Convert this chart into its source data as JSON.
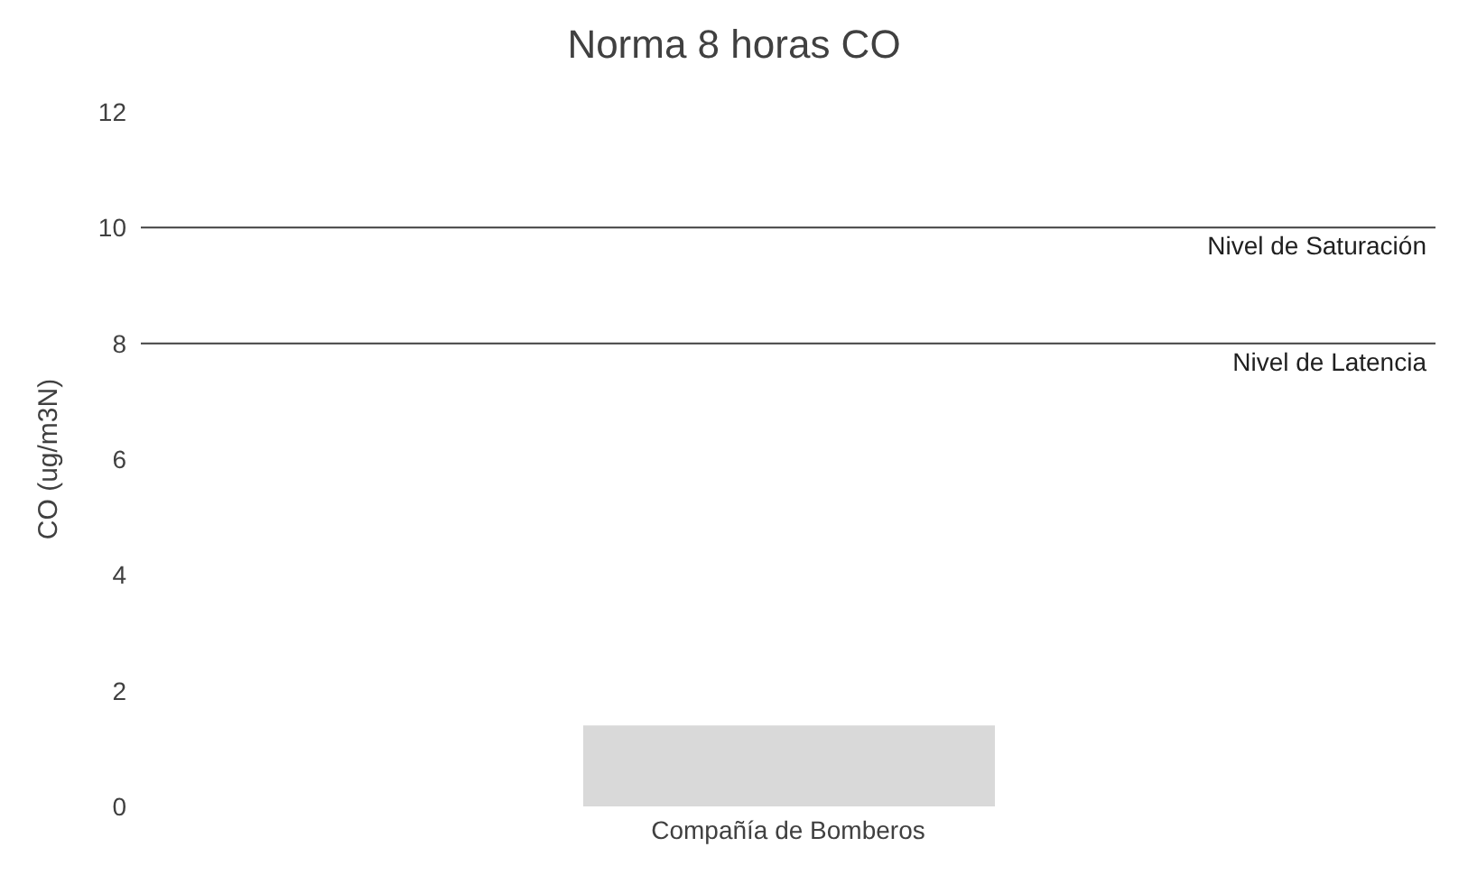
{
  "chart_data": {
    "type": "bar",
    "title": "Norma 8 horas CO",
    "ylabel": "CO (ug/m3N)",
    "categories": [
      "Compañía de Bomberos"
    ],
    "values": [
      1.4
    ],
    "color": "#d9d9d9",
    "ylim": [
      0,
      12
    ],
    "yticks": [
      0,
      2,
      4,
      6,
      8,
      10,
      12
    ],
    "grid": false,
    "legend": false,
    "ref_lines": [
      {
        "axis": "y",
        "value": 10,
        "label": "Nivel de Saturación",
        "color": "#404040"
      },
      {
        "axis": "y",
        "value": 8,
        "label": "Nivel de Latencia",
        "color": "#404040"
      }
    ]
  }
}
